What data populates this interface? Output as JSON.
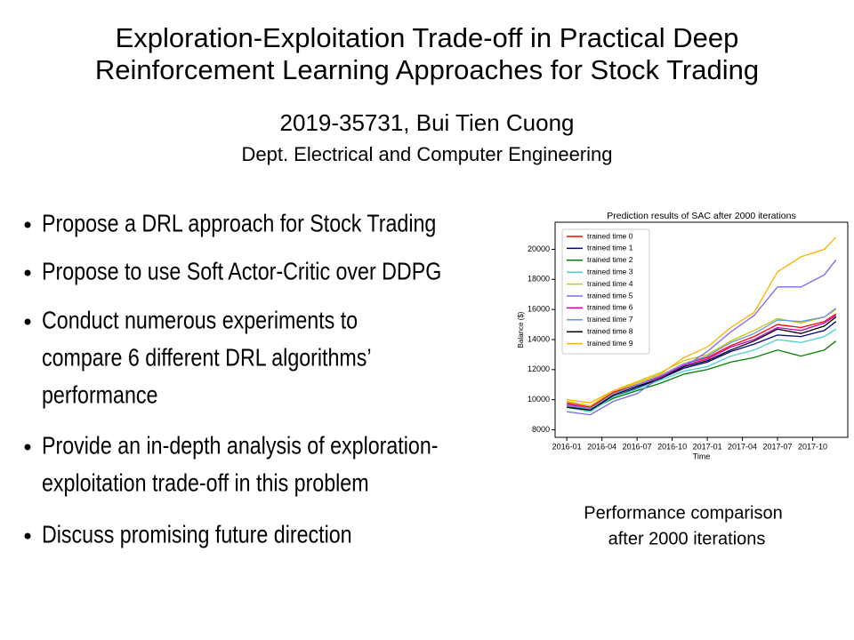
{
  "header": {
    "title": [
      "Exploration-Exploitation Trade-off in Practical Deep",
      "Reinforcement Learning Approaches for Stock Trading"
    ],
    "author": "2019-35731, Bui Tien Cuong",
    "affiliation": "Dept. Electrical and Computer Engineering"
  },
  "bullets": [
    [
      "Propose a DRL approach for Stock Trading"
    ],
    [
      "Propose to use Soft Actor-Critic over DDPG"
    ],
    [
      "Conduct numerous experiments to",
      "compare 6 different DRL algorithms’",
      "performance"
    ],
    [
      "Provide an in-depth analysis of exploration-",
      "exploitation trade-off in this problem"
    ],
    [
      "Discuss promising future direction"
    ]
  ],
  "caption": [
    "Performance comparison",
    "after 2000 iterations"
  ],
  "chart_data": {
    "type": "line",
    "title": "Prediction results of SAC after 2000 iterations",
    "xlabel": "Time",
    "ylabel": "Balance ($)",
    "x": [
      "2016-01",
      "2016-03",
      "2016-05",
      "2016-07",
      "2016-09",
      "2016-11",
      "2017-01",
      "2017-03",
      "2017-05",
      "2017-07",
      "2017-09",
      "2017-11",
      "2017-12"
    ],
    "xlim": [
      "2015-12",
      "2018-01"
    ],
    "xticks": [
      "2016-01",
      "2016-04",
      "2016-07",
      "2016-10",
      "2017-01",
      "2017-04",
      "2017-07",
      "2017-10"
    ],
    "ylim": [
      7500,
      21800
    ],
    "yticks": [
      8000,
      10000,
      12000,
      14000,
      16000,
      18000,
      20000
    ],
    "legend": "upper-left",
    "series": [
      {
        "name": "trained time 0",
        "color": "#ff0000",
        "values": [
          9800,
          9500,
          10500,
          11000,
          11600,
          12400,
          12800,
          13600,
          14200,
          15000,
          14800,
          15200,
          15700
        ]
      },
      {
        "name": "trained time 1",
        "color": "#00008b",
        "values": [
          9600,
          9300,
          10200,
          10800,
          11400,
          12100,
          12500,
          13200,
          13700,
          14300,
          14200,
          14600,
          15200
        ]
      },
      {
        "name": "trained time 2",
        "color": "#008000",
        "values": [
          9600,
          9300,
          10100,
          10600,
          11100,
          11700,
          12000,
          12500,
          12800,
          13300,
          12900,
          13300,
          13900
        ]
      },
      {
        "name": "trained time 3",
        "color": "#48d1cc",
        "values": [
          9500,
          9200,
          10200,
          10700,
          11300,
          11900,
          12200,
          12900,
          13300,
          14000,
          13800,
          14200,
          14700
        ]
      },
      {
        "name": "trained time 4",
        "color": "#c8c800",
        "values": [
          9900,
          9600,
          10600,
          11200,
          11800,
          12600,
          13000,
          13900,
          14600,
          15400,
          15100,
          15500,
          16000
        ]
      },
      {
        "name": "trained time 5",
        "color": "#7b68ee",
        "values": [
          9200,
          9000,
          9900,
          10400,
          11500,
          12200,
          13200,
          14500,
          15600,
          17500,
          17500,
          18300,
          19300
        ]
      },
      {
        "name": "trained time 6",
        "color": "#c000c0",
        "values": [
          9700,
          9400,
          10400,
          11000,
          11500,
          12300,
          12700,
          13500,
          14000,
          14800,
          14600,
          15100,
          15600
        ]
      },
      {
        "name": "trained time 7",
        "color": "#6495ed",
        "values": [
          9600,
          9400,
          10400,
          11000,
          11600,
          12400,
          12900,
          13800,
          14400,
          15300,
          15200,
          15500,
          16100
        ]
      },
      {
        "name": "trained time 8",
        "color": "#000000",
        "values": [
          9500,
          9300,
          10300,
          10900,
          11400,
          12200,
          12600,
          13300,
          13900,
          14700,
          14400,
          14900,
          15500
        ]
      },
      {
        "name": "trained time 9",
        "color": "#ffb000",
        "values": [
          10000,
          9800,
          10600,
          11100,
          11700,
          12800,
          13500,
          14800,
          15800,
          18500,
          19500,
          20000,
          20800
        ]
      }
    ]
  }
}
